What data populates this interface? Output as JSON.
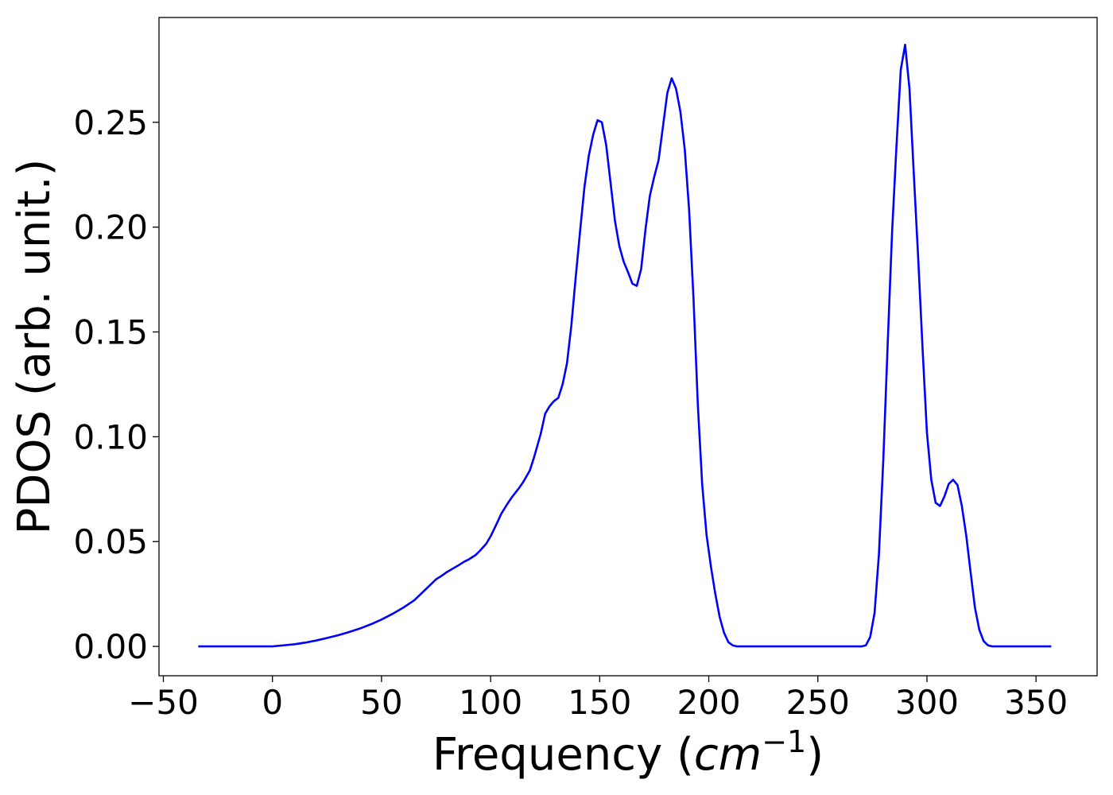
{
  "chart_data": {
    "type": "line",
    "title": "",
    "xlabel_main": "Frequency (",
    "xlabel_italic": "cm",
    "xlabel_sup": "−1",
    "xlabel_close": ")",
    "ylabel": "PDOS (arb. unit.)",
    "xlim": [
      -52,
      378
    ],
    "ylim": [
      -0.014,
      0.3
    ],
    "xticks": [
      -50,
      0,
      50,
      100,
      150,
      200,
      250,
      300,
      350
    ],
    "xtick_labels": [
      "−50",
      "0",
      "50",
      "100",
      "150",
      "200",
      "250",
      "300",
      "350"
    ],
    "yticks": [
      0.0,
      0.05,
      0.1,
      0.15,
      0.2,
      0.25
    ],
    "ytick_labels": [
      "0.00",
      "0.05",
      "0.10",
      "0.15",
      "0.20",
      "0.25"
    ],
    "grid": false,
    "legend": false,
    "series": [
      {
        "color": "#0000ff",
        "x": [
          -34,
          -20,
          -10,
          0,
          5,
          10,
          15,
          20,
          25,
          30,
          35,
          40,
          45,
          50,
          55,
          60,
          65,
          70,
          75,
          78,
          80,
          85,
          88,
          90,
          93,
          95,
          98,
          100,
          103,
          105,
          108,
          110,
          113,
          115,
          118,
          120,
          123,
          125,
          127,
          129,
          131,
          133,
          135,
          137,
          139,
          141,
          143,
          145,
          147,
          149,
          151,
          153,
          155,
          157,
          159,
          161,
          163,
          165,
          167,
          169,
          171,
          173,
          175,
          177,
          179,
          181,
          183,
          185,
          187,
          189,
          191,
          193,
          195,
          197,
          199,
          201,
          203,
          205,
          207,
          209,
          211,
          213,
          215,
          220,
          230,
          250,
          270,
          272,
          274,
          276,
          278,
          280,
          282,
          284,
          286,
          288,
          290,
          292,
          294,
          296,
          298,
          300,
          302,
          304,
          306,
          308,
          310,
          312,
          314,
          316,
          318,
          320,
          322,
          324,
          326,
          328,
          330,
          332,
          334,
          340,
          357
        ],
        "y": [
          0.0,
          0.0,
          0.0,
          0.0,
          0.0005,
          0.001,
          0.0018,
          0.0028,
          0.004,
          0.0053,
          0.0068,
          0.0085,
          0.0105,
          0.0128,
          0.0155,
          0.0185,
          0.022,
          0.027,
          0.032,
          0.034,
          0.0355,
          0.0385,
          0.0405,
          0.0415,
          0.0435,
          0.0455,
          0.049,
          0.0525,
          0.059,
          0.0635,
          0.0685,
          0.0715,
          0.0755,
          0.0785,
          0.084,
          0.0905,
          0.1015,
          0.111,
          0.1145,
          0.117,
          0.1185,
          0.125,
          0.135,
          0.153,
          0.176,
          0.198,
          0.219,
          0.234,
          0.244,
          0.251,
          0.25,
          0.239,
          0.221,
          0.203,
          0.191,
          0.1835,
          0.1785,
          0.173,
          0.172,
          0.18,
          0.199,
          0.215,
          0.224,
          0.232,
          0.248,
          0.264,
          0.271,
          0.266,
          0.255,
          0.237,
          0.208,
          0.166,
          0.115,
          0.077,
          0.053,
          0.038,
          0.025,
          0.014,
          0.0065,
          0.002,
          0.0005,
          0.0,
          0.0,
          0.0,
          0.0,
          0.0,
          0.0,
          0.0005,
          0.0045,
          0.016,
          0.044,
          0.089,
          0.144,
          0.197,
          0.238,
          0.275,
          0.287,
          0.266,
          0.225,
          0.185,
          0.142,
          0.102,
          0.0795,
          0.0685,
          0.067,
          0.0715,
          0.0775,
          0.0795,
          0.077,
          0.067,
          0.053,
          0.0355,
          0.0185,
          0.008,
          0.0025,
          0.0005,
          0.0,
          0.0,
          0.0,
          0.0,
          0.0
        ]
      }
    ]
  }
}
